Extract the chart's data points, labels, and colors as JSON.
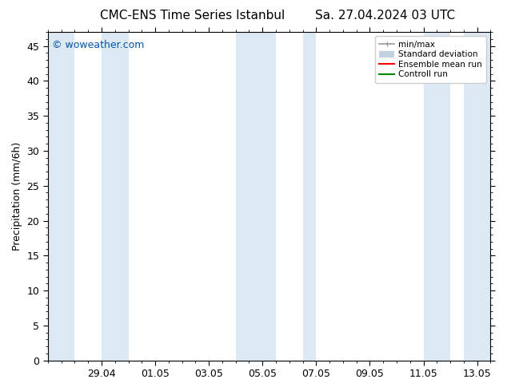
{
  "title": "CMC-ENS Time Series Istanbul",
  "title2": "Sa. 27.04.2024 03 UTC",
  "ylabel": "Precipitation (mm/6h)",
  "watermark": "© woweather.com",
  "watermark_color": "#0055aa",
  "ylim": [
    0,
    47
  ],
  "yticks": [
    0,
    5,
    10,
    15,
    20,
    25,
    30,
    35,
    40,
    45
  ],
  "background_color": "#ffffff",
  "plot_bg_color": "#ffffff",
  "shade_color": "#dce9f5",
  "shade_bands": [
    [
      0.0,
      1.0
    ],
    [
      2.0,
      3.0
    ],
    [
      7.0,
      8.5
    ],
    [
      9.5,
      10.0
    ],
    [
      14.0,
      15.0
    ],
    [
      15.5,
      16.5
    ]
  ],
  "xlim": [
    0,
    16.5
  ],
  "xtick_positions": [
    2,
    4,
    6,
    8,
    10,
    12,
    14,
    16
  ],
  "xtick_labels": [
    "29.04",
    "01.05",
    "03.05",
    "05.05",
    "07.05",
    "09.05",
    "11.05",
    "13.05"
  ],
  "legend_labels": [
    "min/max",
    "Standard deviation",
    "Ensemble mean run",
    "Controll run"
  ],
  "legend_colors": [
    "#999999",
    "#bbccdd",
    "#ff0000",
    "#008800"
  ],
  "font_size": 9,
  "title_font_size": 11
}
